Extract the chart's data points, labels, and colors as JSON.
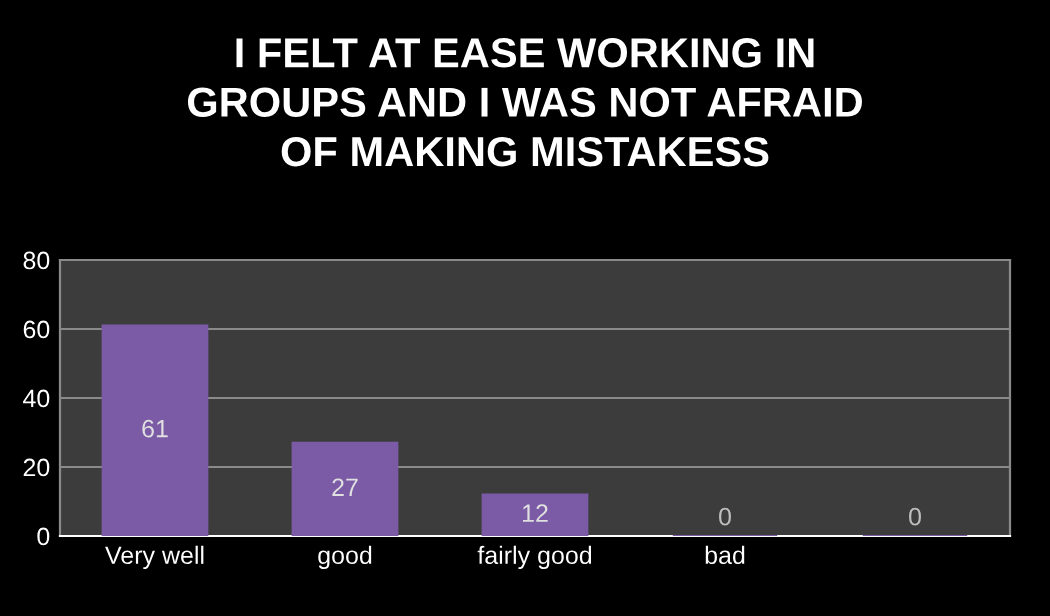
{
  "chart_data": {
    "type": "bar",
    "title": "I FELT AT EASE WORKING IN\nGROUPS AND I WAS NOT AFRAID\nOF MAKING MISTAKESS",
    "categories": [
      "Very well",
      "good",
      "fairly good",
      "bad",
      null
    ],
    "values": [
      61,
      27,
      12,
      0,
      0
    ],
    "color": "#7b5ba6",
    "ylim": [
      0,
      80
    ],
    "yticks": [
      0,
      20,
      40,
      60,
      80
    ],
    "grid": "y",
    "data_labels": true,
    "legend": false
  }
}
